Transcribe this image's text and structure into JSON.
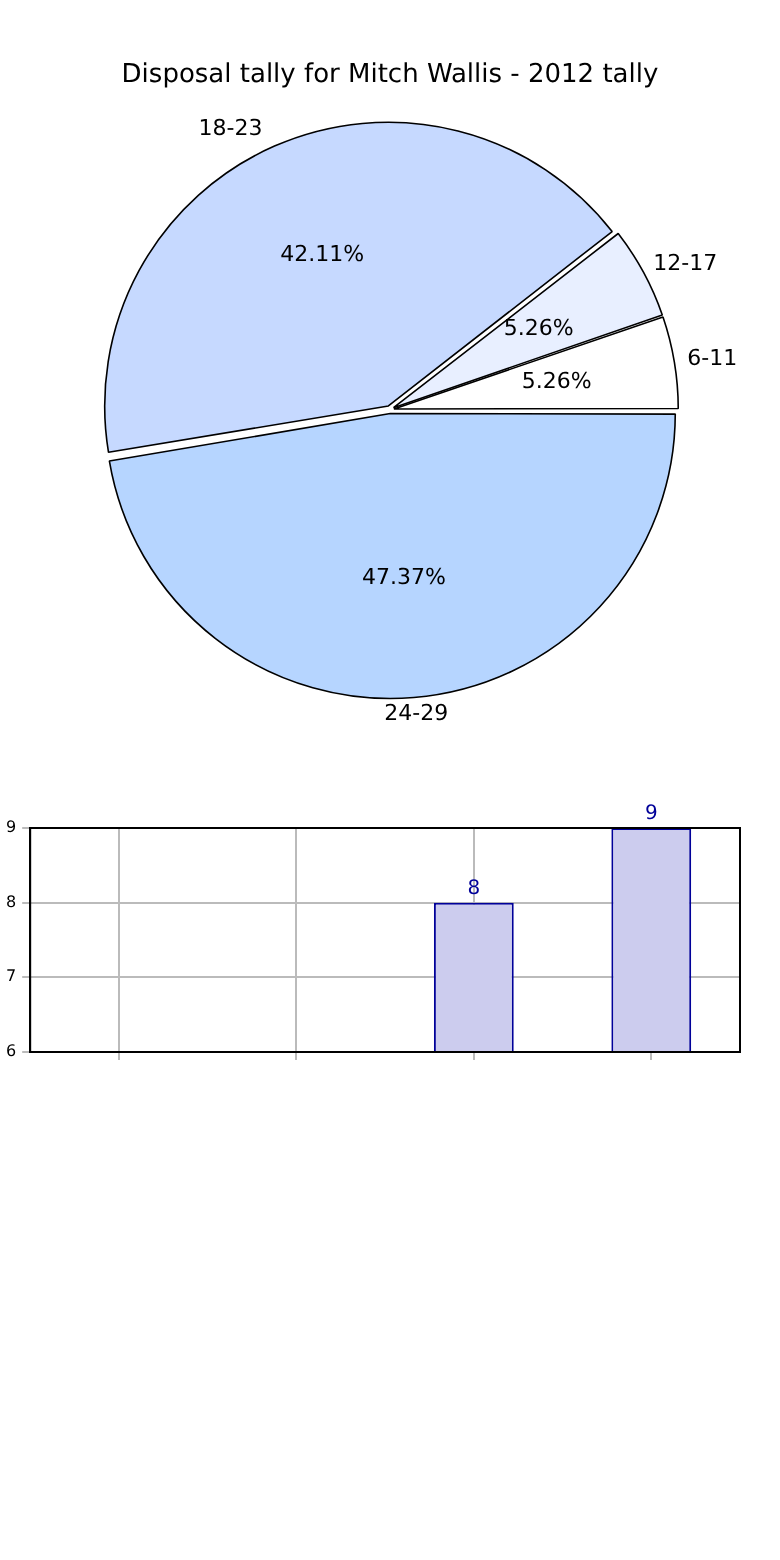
{
  "chart_data": [
    {
      "type": "pie",
      "title": "Disposal tally for Mitch Wallis - 2012 tally",
      "categories": [
        "6-11",
        "12-17",
        "18-23",
        "24-29"
      ],
      "values": [
        5.26,
        5.26,
        42.11,
        47.37
      ],
      "colors": [
        "#ffffff",
        "#e8efff",
        "#c6d9ff",
        "#b6d5ff"
      ],
      "value_labels": [
        "5.26%",
        "5.26%",
        "42.11%",
        "47.37%"
      ],
      "legend": false
    },
    {
      "type": "bar",
      "categories": [
        null,
        null,
        null,
        null
      ],
      "values": [
        null,
        null,
        8,
        9
      ],
      "color": "#ccccee",
      "ylim": [
        6,
        9
      ],
      "yticks": [
        6,
        7,
        8,
        9
      ],
      "grid": true,
      "data_labels": true,
      "tick_labels": "y",
      "legend": false
    }
  ]
}
